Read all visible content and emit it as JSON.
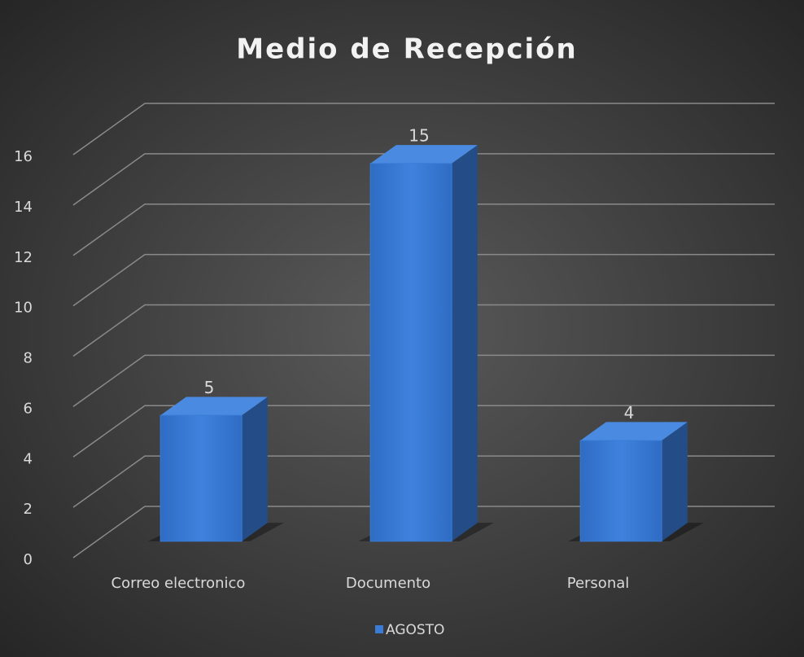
{
  "chart_data": {
    "type": "bar",
    "title": "Medio de Recepción",
    "categories": [
      "Correo electronico",
      "Documento",
      "Personal"
    ],
    "series": [
      {
        "name": "AGOSTO",
        "color": "#3a7bd5",
        "values": [
          5,
          15,
          4
        ]
      }
    ],
    "ylim": [
      0,
      16
    ],
    "yticks": [
      0,
      2,
      4,
      6,
      8,
      10,
      12,
      14,
      16
    ],
    "grid": true,
    "legend": "bottom"
  }
}
